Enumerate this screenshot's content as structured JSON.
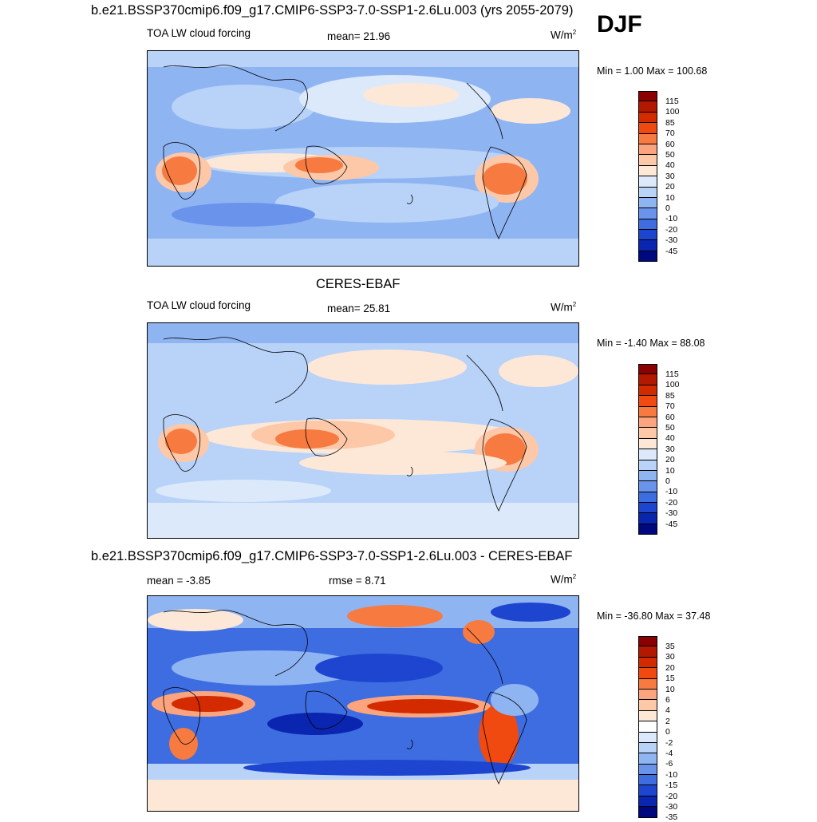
{
  "page": {
    "title": "b.e21.BSSP370cmip6.f09_g17.CMIP6-SSP3-7.0-SSP1-2.6Lu.003 (yrs 2055-2079)",
    "season": "DJF"
  },
  "panels": [
    {
      "title": "",
      "variable": "TOA LW cloud forcing",
      "stat1": "mean=  21.96",
      "stat2": "",
      "units": "W/m",
      "units_sup": "2",
      "minmax": "Min =   1.00 Max = 100.68",
      "palette": "abs",
      "colorbar_labels": [
        "115",
        "100",
        "85",
        "70",
        "60",
        "50",
        "40",
        "30",
        "20",
        "10",
        "0",
        "-10",
        "-20",
        "-30",
        "-45"
      ]
    },
    {
      "title": "CERES-EBAF",
      "variable": "TOA LW cloud forcing",
      "stat1": "mean=  25.81",
      "stat2": "",
      "units": "W/m",
      "units_sup": "2",
      "minmax": "Min =  -1.40 Max =  88.08",
      "palette": "abs",
      "colorbar_labels": [
        "115",
        "100",
        "85",
        "70",
        "60",
        "50",
        "40",
        "30",
        "20",
        "10",
        "0",
        "-10",
        "-20",
        "-30",
        "-45"
      ]
    },
    {
      "title": "b.e21.BSSP370cmip6.f09_g17.CMIP6-SSP3-7.0-SSP1-2.6Lu.003 - CERES-EBAF",
      "variable": "mean =  -3.85",
      "stat1": "rmse =   8.71",
      "stat2": "",
      "units": "W/m",
      "units_sup": "2",
      "minmax": "Min = -36.80 Max =  37.48",
      "palette": "diff",
      "colorbar_labels": [
        "35",
        "30",
        "20",
        "15",
        "10",
        "6",
        "4",
        "2",
        "0",
        "-2",
        "-4",
        "-6",
        "-10",
        "-15",
        "-20",
        "-30",
        "-35"
      ]
    }
  ],
  "colors": {
    "abs": [
      "#8b0000",
      "#b31800",
      "#d42a00",
      "#f04a10",
      "#f77a40",
      "#fca47e",
      "#fdc8a8",
      "#fde8d8",
      "#dbe9fb",
      "#b8d2f8",
      "#8fb4f2",
      "#6a93ec",
      "#3d6de0",
      "#1e45d0",
      "#0a25b0",
      "#000880"
    ],
    "diff": [
      "#8b0000",
      "#b31800",
      "#d42a00",
      "#f04a10",
      "#f77a40",
      "#fca47e",
      "#fdc8a8",
      "#fde8d8",
      "#ffffff",
      "#dbe9fb",
      "#b8d2f8",
      "#8fb4f2",
      "#6a93ec",
      "#3d6de0",
      "#1e45d0",
      "#0a25b0",
      "#000880"
    ]
  }
}
